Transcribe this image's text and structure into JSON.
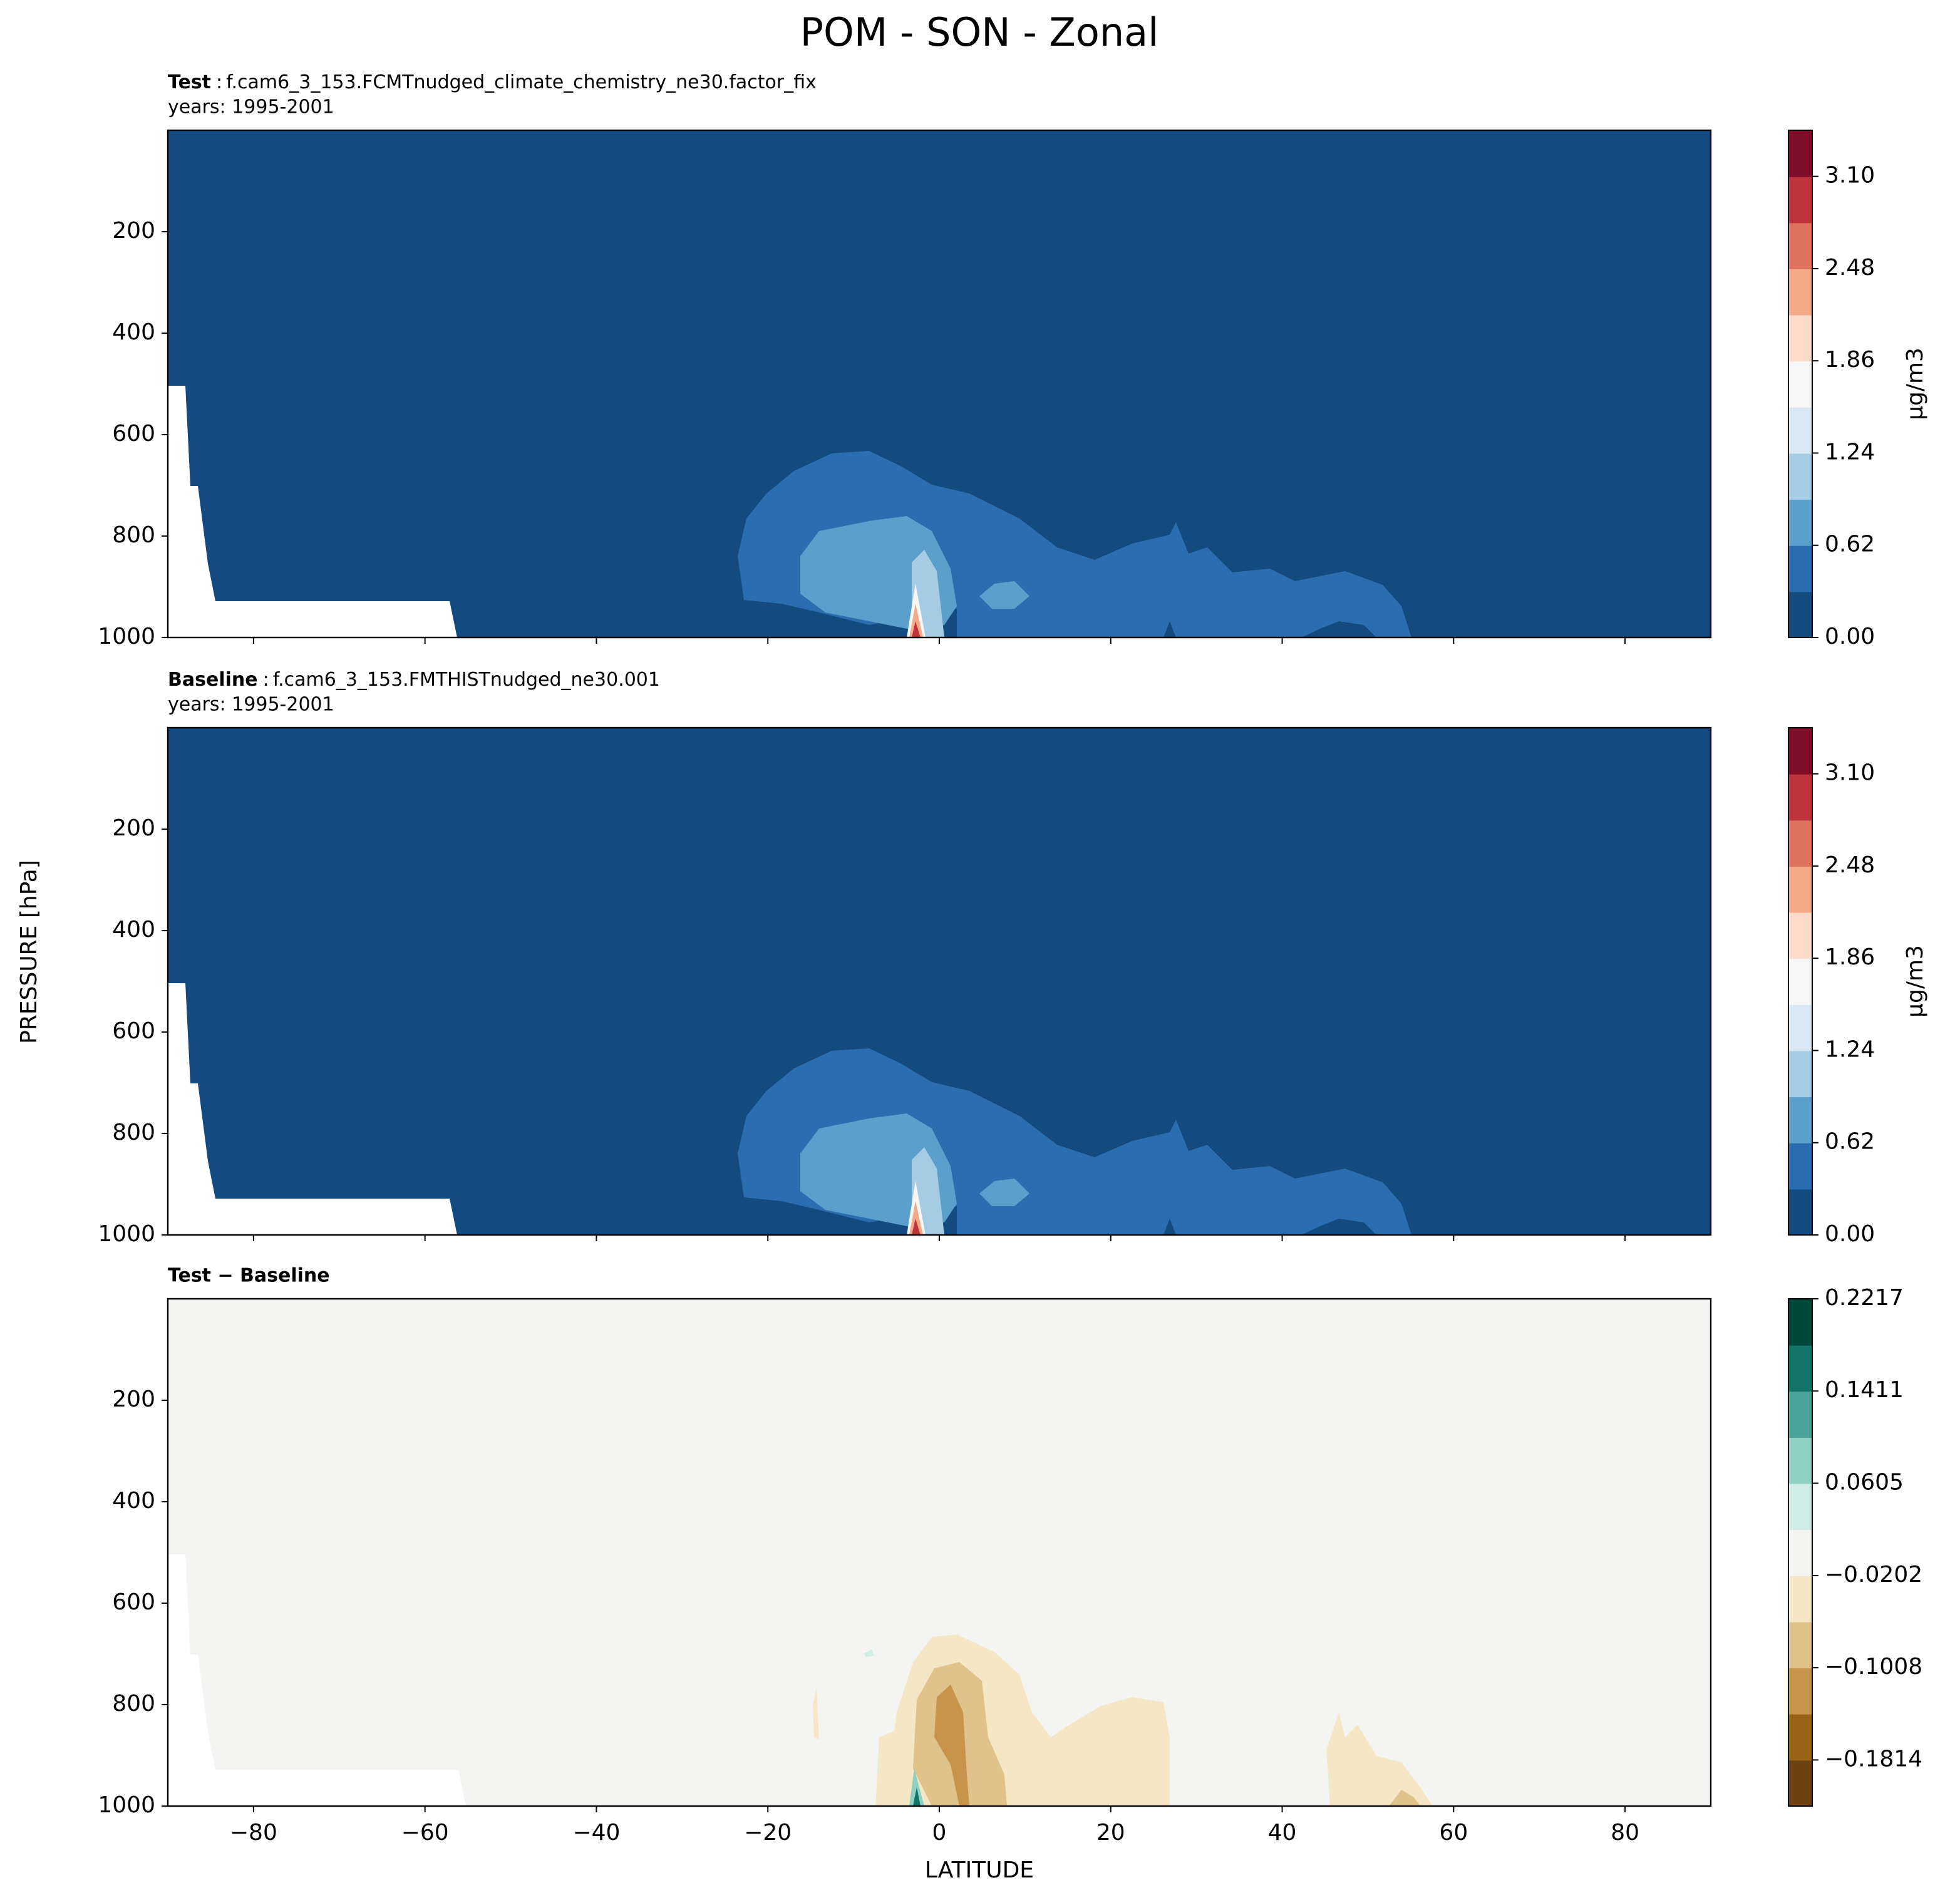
{
  "figure": {
    "title": "POM - SON - Zonal",
    "ylabel": "PRESSURE [hPa]",
    "xlabel": "LATITUDE"
  },
  "chart_data": [
    {
      "type": "contour",
      "title": {
        "label": "Test",
        "separator": ":",
        "case": "f.cam6_3_153.FCMTnudged_climate_chemistry_ne30.factor_fix",
        "years": "years: 1995-2001"
      },
      "xlim": [
        -90,
        90
      ],
      "xticks": [
        -80,
        -60,
        -40,
        -20,
        0,
        20,
        40,
        60,
        80
      ],
      "ylim": [
        1000,
        0
      ],
      "yticks": [
        200,
        400,
        600,
        800,
        1000
      ],
      "colorbar": {
        "label": "μg/m3",
        "lim": [
          0,
          3.41
        ],
        "ticks": [
          {
            "value": 0,
            "label": "0.00"
          },
          0.62,
          1.24,
          1.86,
          2.48,
          {
            "value": 3.1,
            "label": "3.10"
          }
        ],
        "colors": [
          "#134b81",
          "#2b6eaf",
          "#5b9fcd",
          "#a5cce3",
          "#d8e7f2",
          "#f6f6f6",
          "#fbdccb",
          "#f4aa88",
          "#de725f",
          "#bf343c",
          "#7f0d27"
        ]
      }
    },
    {
      "type": "contour",
      "title": {
        "label": "Baseline",
        "separator": ":",
        "case": "f.cam6_3_153.FMTHISTnudged_ne30.001",
        "years": "years: 1995-2001"
      },
      "xlim": [
        -90,
        90
      ],
      "xticks": [
        -80,
        -60,
        -40,
        -20,
        0,
        20,
        40,
        60,
        80
      ],
      "ylim": [
        1000,
        0
      ],
      "yticks": [
        200,
        400,
        600,
        800,
        1000
      ],
      "colorbar": {
        "label": "μg/m3",
        "lim": [
          0,
          3.41
        ],
        "ticks": [
          {
            "value": 0,
            "label": "0.00"
          },
          0.62,
          1.24,
          1.86,
          2.48,
          {
            "value": 3.1,
            "label": "3.10"
          }
        ],
        "colors": [
          "#134b81",
          "#2b6eaf",
          "#5b9fcd",
          "#a5cce3",
          "#d8e7f2",
          "#f6f6f6",
          "#fbdccb",
          "#f4aa88",
          "#de725f",
          "#bf343c",
          "#7f0d27"
        ]
      }
    },
    {
      "type": "contour",
      "title": {
        "label": "Test − Baseline"
      },
      "xlim": [
        -90,
        90
      ],
      "xticks": [
        {
          "value": -80,
          "label": "−80"
        },
        {
          "value": -60,
          "label": "−60"
        },
        {
          "value": -40,
          "label": "−40"
        },
        {
          "value": -20,
          "label": "−20"
        },
        0,
        20,
        40,
        60,
        80
      ],
      "ylim": [
        1000,
        0
      ],
      "yticks": [
        200,
        400,
        600,
        800,
        1000
      ],
      "colorbar": {
        "lim": [
          -0.2217,
          0.2217
        ],
        "ticks": [
          {
            "value": -0.1814,
            "label": "−0.1814"
          },
          {
            "value": -0.1008,
            "label": "−0.1008"
          },
          {
            "value": -0.0202,
            "label": "−0.0202"
          },
          0.0605,
          0.1411,
          0.2217
        ],
        "colors": [
          "#6c4210",
          "#9b6318",
          "#c8934a",
          "#dfc38a",
          "#f5e7c6",
          "#f4f5f3",
          "#d0ece7",
          "#8ed0c2",
          "#4aa299",
          "#127368",
          "#00473b"
        ]
      }
    }
  ]
}
